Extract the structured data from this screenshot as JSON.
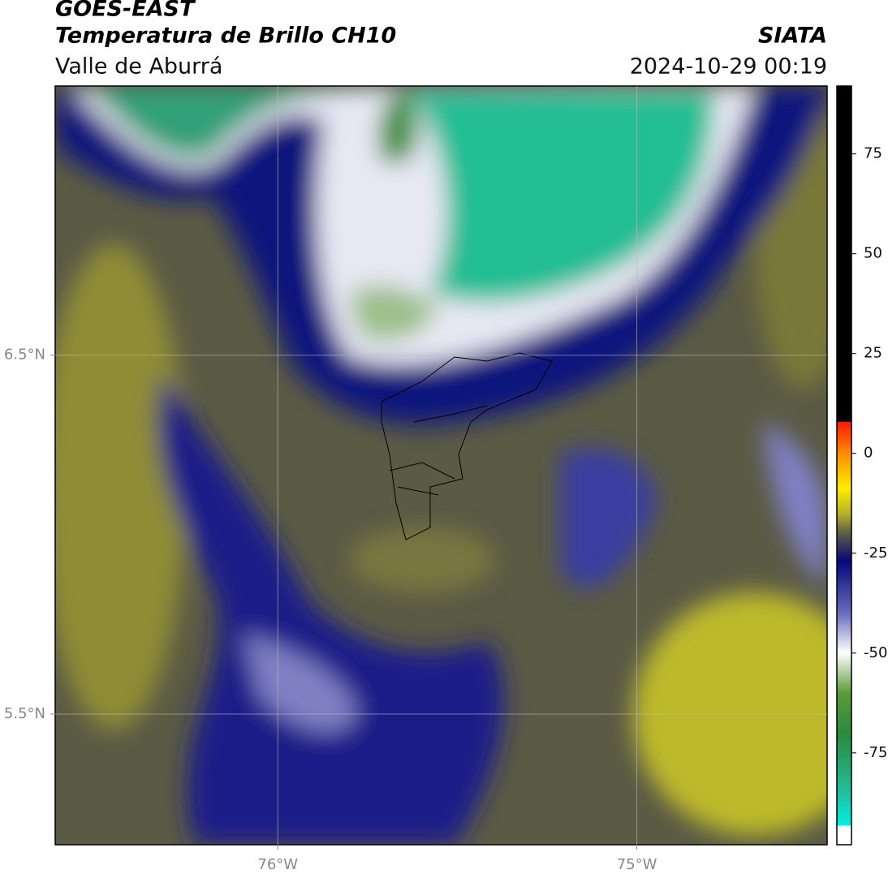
{
  "header": {
    "title": "GOES-EAST",
    "subtitle": "Temperatura de Brillo CH10",
    "region": "Valle de Aburrá",
    "source": "SIATA",
    "timestamp": "2024-10-29 00:19"
  },
  "map": {
    "xlim": [
      -76.62,
      -74.47
    ],
    "ylim": [
      5.136,
      7.25
    ],
    "xticks": [
      {
        "value": -76,
        "label": "76°W"
      },
      {
        "value": -75,
        "label": "75°W"
      }
    ],
    "yticks": [
      {
        "value": 6.5,
        "label": "6.5°N"
      },
      {
        "value": 5.5,
        "label": "5.5°N"
      }
    ],
    "grid": true
  },
  "colorbar": {
    "lim": [
      -98,
      92
    ],
    "ticks": [
      75,
      50,
      25,
      0,
      -25,
      -50,
      -75
    ]
  }
}
